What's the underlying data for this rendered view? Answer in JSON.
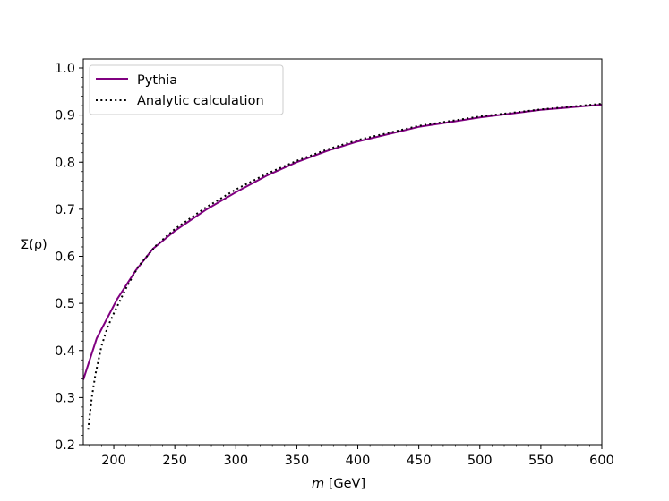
{
  "chart_data": {
    "type": "line",
    "title": "",
    "xlabel_italic": "m",
    "xlabel_rest": " [GeV]",
    "xlabel": "m [GeV]",
    "ylabel": "Σ(ρ)",
    "xlim": [
      175,
      600
    ],
    "ylim": [
      0.2,
      1.0
    ],
    "x_ticks": [
      200,
      250,
      300,
      350,
      400,
      450,
      500,
      550,
      600
    ],
    "y_ticks": [
      0.2,
      0.3,
      0.4,
      0.5,
      0.6,
      0.7,
      0.8,
      0.9,
      1.0
    ],
    "y_tick_labels": [
      "0.2",
      "0.3",
      "0.4",
      "0.5",
      "0.6",
      "0.7",
      "0.8",
      "0.9",
      "1.0"
    ],
    "grid": false,
    "legend_position": "upper left",
    "series": [
      {
        "name": "Pythia",
        "style": "solid",
        "color": "#800080",
        "x": [
          175,
          186,
          203,
          218,
          232,
          250,
          275,
          300,
          325,
          350,
          375,
          400,
          450,
          500,
          550,
          600
        ],
        "y": [
          0.338,
          0.426,
          0.51,
          0.57,
          0.616,
          0.654,
          0.698,
          0.736,
          0.771,
          0.8,
          0.824,
          0.844,
          0.875,
          0.895,
          0.911,
          0.922
        ]
      },
      {
        "name": "Analytic calculation",
        "style": "dotted",
        "color": "#000000",
        "x": [
          179,
          182,
          185,
          190,
          195,
          200,
          210,
          220,
          235,
          250,
          275,
          300,
          325,
          350,
          375,
          400,
          450,
          500,
          550,
          600
        ],
        "y": [
          0.232,
          0.3,
          0.35,
          0.41,
          0.45,
          0.479,
          0.532,
          0.578,
          0.624,
          0.658,
          0.703,
          0.742,
          0.775,
          0.803,
          0.827,
          0.847,
          0.877,
          0.897,
          0.912,
          0.924
        ]
      }
    ]
  }
}
